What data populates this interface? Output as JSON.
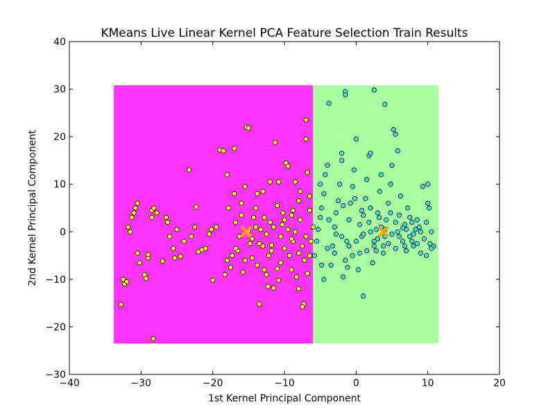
{
  "chart_data": {
    "type": "scatter",
    "title": "KMeans Live Linear Kernel PCA Feature Selection Train Results",
    "xlabel": "1st Kernel Principal Component",
    "ylabel": "2nd Kernel Principal Component",
    "xlim": [
      -40,
      20
    ],
    "ylim": [
      -30,
      40
    ],
    "xticks": [
      -40,
      -30,
      -20,
      -10,
      0,
      10,
      20
    ],
    "yticks": [
      -30,
      -20,
      -10,
      0,
      10,
      20,
      30
    ],
    "xtick_labels": [
      "−40",
      "−30",
      "−20",
      "−10",
      "0",
      "10",
      "20"
    ],
    "ytick_labels": [
      "−30",
      "−20",
      "−10",
      "0",
      "10",
      "20",
      "30"
    ],
    "grid": false,
    "decision_regions": [
      {
        "cluster": 0,
        "color": "#ff33ff",
        "x": [
          -33.8,
          -6.0
        ],
        "y": [
          -23.5,
          30.8
        ]
      },
      {
        "cluster": 1,
        "color": "#aaffa0",
        "x": [
          -6.0,
          11.5
        ],
        "y": [
          -23.5,
          30.8
        ]
      }
    ],
    "centroids": [
      {
        "cluster": 0,
        "x": -15.3,
        "y": 0.0,
        "color": "#ffa500"
      },
      {
        "cluster": 1,
        "x": 3.8,
        "y": 0.0,
        "color": "#ffa500"
      }
    ],
    "series": [
      {
        "cluster": 0,
        "color": "#ffff00",
        "points": [
          [
            -32.8,
            -15.3
          ],
          [
            -32.5,
            -10.0
          ],
          [
            -32.3,
            -11.0
          ],
          [
            -32.0,
            -10.5
          ],
          [
            -31.8,
            1.0
          ],
          [
            -31.5,
            0.0
          ],
          [
            -31.3,
            3.0
          ],
          [
            -31.0,
            4.0
          ],
          [
            -30.8,
            5.0
          ],
          [
            -30.5,
            6.0
          ],
          [
            -30.5,
            -4.5
          ],
          [
            -30.2,
            -6.5
          ],
          [
            -29.5,
            -9.0
          ],
          [
            -29.3,
            -9.8
          ],
          [
            -29.0,
            -5.5
          ],
          [
            -29.0,
            -4.8
          ],
          [
            -28.5,
            3.0
          ],
          [
            -28.5,
            4.5
          ],
          [
            -28.2,
            5.0
          ],
          [
            -28.3,
            -22.5
          ],
          [
            -27.8,
            4.0
          ],
          [
            -27.0,
            -6.2
          ],
          [
            -26.5,
            3.0
          ],
          [
            -26.3,
            2.0
          ],
          [
            -26.0,
            -1.0
          ],
          [
            -25.5,
            -3.5
          ],
          [
            -25.3,
            -5.5
          ],
          [
            -25.0,
            0.5
          ],
          [
            -24.5,
            -5.2
          ],
          [
            -24.0,
            -2.0
          ],
          [
            -23.3,
            13.0
          ],
          [
            -23.0,
            -1.0
          ],
          [
            -22.5,
            1.0
          ],
          [
            -22.3,
            5.2
          ],
          [
            -22.0,
            -4.2
          ],
          [
            -21.5,
            -3.8
          ],
          [
            -21.0,
            -3.5
          ],
          [
            -20.5,
            -0.5
          ],
          [
            -20.2,
            0.5
          ],
          [
            -20.0,
            -10.2
          ],
          [
            -19.5,
            1.0
          ],
          [
            -19.0,
            17.2
          ],
          [
            -18.5,
            17.0
          ],
          [
            -18.3,
            -9.0
          ],
          [
            -18.0,
            12.0
          ],
          [
            -17.8,
            5.0
          ],
          [
            -17.5,
            -7.5
          ],
          [
            -17.3,
            -5.0
          ],
          [
            -17.0,
            17.5
          ],
          [
            -16.8,
            2.0
          ],
          [
            -16.5,
            -4.0
          ],
          [
            -16.3,
            -1.0
          ],
          [
            -16.0,
            6.0
          ],
          [
            -15.8,
            -8.5
          ],
          [
            -15.5,
            -6.0
          ],
          [
            -15.3,
            22.0
          ],
          [
            -15.0,
            21.8
          ],
          [
            -14.8,
            -2.5
          ],
          [
            -14.5,
            -1.5
          ],
          [
            -14.3,
            3.0
          ],
          [
            -14.0,
            5.0
          ],
          [
            -13.8,
            8.0
          ],
          [
            -13.5,
            -15.2
          ],
          [
            -13.3,
            0.5
          ],
          [
            -13.0,
            -3.0
          ],
          [
            -12.8,
            -8.0
          ],
          [
            -12.5,
            -9.0
          ],
          [
            -12.3,
            -11.5
          ],
          [
            -12.0,
            2.0
          ],
          [
            -11.8,
            -4.0
          ],
          [
            -11.5,
            -11.8
          ],
          [
            -11.3,
            18.8
          ],
          [
            -11.0,
            -7.8
          ],
          [
            -10.8,
            10.5
          ],
          [
            -10.5,
            -1.0
          ],
          [
            -10.3,
            1.5
          ],
          [
            -10.0,
            -3.5
          ],
          [
            -9.8,
            14.5
          ],
          [
            -9.5,
            13.8
          ],
          [
            -9.3,
            -5.0
          ],
          [
            -9.0,
            3.5
          ],
          [
            -8.8,
            -2.0
          ],
          [
            -8.5,
            0.0
          ],
          [
            -8.3,
            -9.5
          ],
          [
            -8.0,
            -4.5
          ],
          [
            -7.8,
            2.5
          ],
          [
            -7.5,
            -3.0
          ],
          [
            -7.3,
            -15.2
          ],
          [
            -7.5,
            -15.8
          ],
          [
            -7.0,
            19.5
          ],
          [
            -6.8,
            -8.8
          ],
          [
            -6.5,
            4.5
          ],
          [
            -6.3,
            -2.0
          ],
          [
            -6.0,
            1.0
          ],
          [
            -7.0,
            23.5
          ],
          [
            -8.5,
            10.5
          ],
          [
            -12.0,
            10.5
          ],
          [
            -13.0,
            8.5
          ],
          [
            -14.0,
            1.0
          ],
          [
            -15.5,
            9.5
          ],
          [
            -16.0,
            3.5
          ],
          [
            -17.0,
            8.0
          ],
          [
            -11.0,
            5.5
          ],
          [
            -10.0,
            2.5
          ],
          [
            -9.0,
            -1.5
          ],
          [
            -8.0,
            6.5
          ],
          [
            -7.0,
            -1.0
          ],
          [
            -6.5,
            -5.0
          ],
          [
            -12.5,
            -0.5
          ],
          [
            -13.5,
            -2.5
          ],
          [
            -14.5,
            -5.5
          ],
          [
            -10.5,
            -6.5
          ],
          [
            -9.5,
            0.5
          ],
          [
            -8.8,
            4.5
          ],
          [
            -11.5,
            1.0
          ],
          [
            -12.8,
            3.0
          ],
          [
            -13.8,
            -7.0
          ],
          [
            -15.0,
            0.2
          ],
          [
            -16.8,
            -3.5
          ],
          [
            -18.0,
            -6.0
          ],
          [
            -7.8,
            8.5
          ],
          [
            -6.8,
            12.5
          ],
          [
            -9.0,
            -8.0
          ],
          [
            -10.8,
            -10.2
          ],
          [
            -12.2,
            -5.0
          ],
          [
            -8.0,
            -12.0
          ],
          [
            -6.5,
            7.5
          ],
          [
            -7.2,
            -6.0
          ],
          [
            -10.2,
            4.0
          ],
          [
            -11.8,
            -2.8
          ]
        ]
      },
      {
        "cluster": 1,
        "color": "#33e8e8",
        "points": [
          [
            -5.8,
            -5.0
          ],
          [
            -5.5,
            -2.0
          ],
          [
            -5.3,
            0.5
          ],
          [
            -5.0,
            3.0
          ],
          [
            -4.8,
            5.0
          ],
          [
            -4.5,
            8.0
          ],
          [
            -4.3,
            12.0
          ],
          [
            -4.0,
            14.0
          ],
          [
            -3.8,
            27.0
          ],
          [
            -4.5,
            -10.0
          ],
          [
            -3.5,
            -7.0
          ],
          [
            -3.3,
            -3.0
          ],
          [
            -3.0,
            1.0
          ],
          [
            -2.8,
            4.0
          ],
          [
            -2.5,
            6.5
          ],
          [
            -2.3,
            10.0
          ],
          [
            -2.0,
            16.5
          ],
          [
            -2.0,
            15.0
          ],
          [
            -1.8,
            -9.5
          ],
          [
            -1.5,
            -6.0
          ],
          [
            -1.3,
            -2.0
          ],
          [
            -1.0,
            2.5
          ],
          [
            -1.5,
            29.5
          ],
          [
            -1.5,
            28.8
          ],
          [
            -0.8,
            6.0
          ],
          [
            -0.5,
            9.5
          ],
          [
            -0.3,
            13.0
          ],
          [
            -0.0,
            19.5
          ],
          [
            0.3,
            -8.0
          ],
          [
            0.5,
            -4.5
          ],
          [
            0.8,
            -1.0
          ],
          [
            1.0,
            3.5
          ],
          [
            1.0,
            -13.5
          ],
          [
            1.3,
            7.0
          ],
          [
            1.5,
            11.0
          ],
          [
            1.8,
            16.0
          ],
          [
            2.0,
            16.5
          ],
          [
            2.3,
            -6.5
          ],
          [
            2.5,
            -3.0
          ],
          [
            2.8,
            0.5
          ],
          [
            2.5,
            29.8
          ],
          [
            3.0,
            4.0
          ],
          [
            3.3,
            8.5
          ],
          [
            3.5,
            12.0
          ],
          [
            3.8,
            -4.5
          ],
          [
            4.0,
            -1.0
          ],
          [
            4.2,
            2.5
          ],
          [
            4.0,
            26.8
          ],
          [
            4.5,
            6.0
          ],
          [
            4.8,
            10.0
          ],
          [
            5.0,
            14.0
          ],
          [
            5.2,
            21.5
          ],
          [
            5.5,
            20.5
          ],
          [
            5.5,
            -3.5
          ],
          [
            5.8,
            0.0
          ],
          [
            5.8,
            17.0
          ],
          [
            6.0,
            3.5
          ],
          [
            6.2,
            7.5
          ],
          [
            6.5,
            -2.0
          ],
          [
            6.8,
            1.5
          ],
          [
            7.0,
            -4.0
          ],
          [
            7.2,
            5.0
          ],
          [
            7.5,
            -1.0
          ],
          [
            7.8,
            2.0
          ],
          [
            8.0,
            -3.0
          ],
          [
            8.3,
            0.5
          ],
          [
            8.5,
            -2.5
          ],
          [
            8.8,
            1.0
          ],
          [
            9.0,
            -4.5
          ],
          [
            9.3,
            9.5
          ],
          [
            9.5,
            -1.5
          ],
          [
            9.8,
            2.0
          ],
          [
            10.0,
            10.0
          ],
          [
            10.0,
            6.0
          ],
          [
            10.2,
            5.0
          ],
          [
            10.3,
            -2.5
          ],
          [
            10.5,
            0.0
          ],
          [
            10.8,
            -3.0
          ],
          [
            10.5,
            -3.5
          ],
          [
            9.8,
            -5.0
          ],
          [
            -5.0,
            10.0
          ],
          [
            -4.0,
            -3.5
          ],
          [
            -3.0,
            -4.5
          ],
          [
            -2.0,
            -1.0
          ],
          [
            -1.0,
            -3.0
          ],
          [
            0.0,
            -2.0
          ],
          [
            1.0,
            -0.5
          ],
          [
            2.0,
            0.0
          ],
          [
            3.0,
            -1.5
          ],
          [
            4.0,
            0.5
          ],
          [
            5.0,
            -0.5
          ],
          [
            6.0,
            -1.0
          ],
          [
            7.0,
            0.5
          ],
          [
            8.0,
            -0.5
          ],
          [
            9.0,
            0.0
          ],
          [
            3.5,
            1.0
          ],
          [
            2.5,
            -2.0
          ],
          [
            4.5,
            -2.5
          ],
          [
            5.5,
            2.0
          ],
          [
            6.5,
            0.8
          ],
          [
            3.2,
            3.0
          ],
          [
            4.8,
            4.0
          ],
          [
            2.0,
            5.0
          ],
          [
            1.5,
            -4.0
          ],
          [
            0.5,
            1.5
          ],
          [
            -0.5,
            -5.0
          ],
          [
            -1.8,
            5.5
          ],
          [
            -2.8,
            -0.5
          ],
          [
            -3.8,
            2.5
          ],
          [
            -4.8,
            -7.0
          ],
          [
            7.5,
            3.0
          ],
          [
            8.5,
            2.5
          ],
          [
            6.8,
            -3.0
          ],
          [
            7.8,
            -2.0
          ],
          [
            3.8,
            -3.0
          ],
          [
            2.8,
            -4.0
          ],
          [
            1.8,
            2.0
          ],
          [
            0.8,
            4.5
          ],
          [
            -0.2,
            7.0
          ],
          [
            -1.2,
            -7.5
          ]
        ]
      }
    ]
  }
}
